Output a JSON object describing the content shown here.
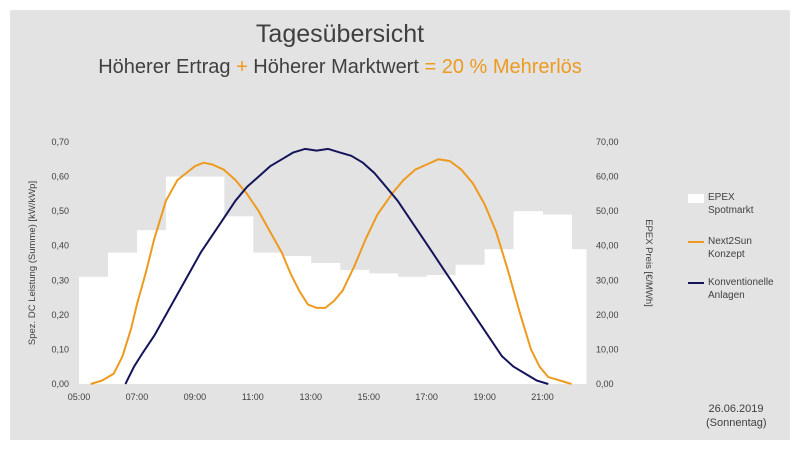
{
  "title": "Tagesübersicht",
  "subtitle": {
    "part1": "Höherer Ertrag ",
    "plus": "+",
    "part2": " Höherer Marktwert ",
    "equals": "= 20 % Mehrerlös"
  },
  "date_line1": "26.06.2019",
  "date_line2": "(Sonnentag)",
  "colors": {
    "background": "#e3e3e3",
    "epex": "#ffffff",
    "next2sun": "#ee9a1f",
    "konventionell": "#14145a",
    "accent": "#ee9a1f"
  },
  "legend": {
    "epex_line1": "EPEX",
    "epex_line2": "Spotmarkt",
    "next2sun_line1": "Next2Sun",
    "next2sun_line2": "Konzept",
    "konv_line1": "Konventionelle",
    "konv_line2": "Anlagen"
  },
  "chart_data": {
    "type": "line",
    "xlabel": "",
    "ylabel": "Spez. DC Leistung (Summe) [kW/kWp]",
    "ylabel_right": "EPEX Preis [€/MWh]",
    "xlim": [
      5,
      22.5
    ],
    "ylim": [
      0,
      0.7
    ],
    "ylim_right": [
      0,
      70
    ],
    "x_ticks": [
      "05:00",
      "07:00",
      "09:00",
      "11:00",
      "13:00",
      "15:00",
      "17:00",
      "19:00",
      "21:00"
    ],
    "y_ticks": [
      "0,00",
      "0,10",
      "0,20",
      "0,30",
      "0,40",
      "0,50",
      "0,60",
      "0,70"
    ],
    "y_ticks_right": [
      "0,00",
      "10,00",
      "20,00",
      "30,00",
      "40,00",
      "50,00",
      "60,00",
      "70,00"
    ],
    "legend_position": "right",
    "grid": false,
    "series": [
      {
        "name": "EPEX Spotmarkt",
        "kind": "step-area",
        "axis": "right",
        "x": [
          5,
          6,
          7,
          8,
          9,
          10,
          11,
          12,
          13,
          14,
          15,
          16,
          17,
          18,
          19,
          20,
          21,
          22,
          22.5
        ],
        "values": [
          31,
          38,
          44.5,
          60,
          60,
          48.5,
          38,
          37,
          35,
          33,
          32,
          31,
          31.5,
          34.5,
          39,
          50,
          49,
          39,
          36.5
        ]
      },
      {
        "name": "Next2Sun Konzept",
        "axis": "left",
        "x": [
          5.4,
          5.8,
          6.2,
          6.5,
          6.8,
          7.0,
          7.3,
          7.6,
          8.0,
          8.4,
          8.7,
          9.0,
          9.3,
          9.6,
          10.0,
          10.4,
          10.8,
          11.2,
          11.6,
          12.0,
          12.3,
          12.6,
          12.9,
          13.2,
          13.5,
          13.8,
          14.1,
          14.5,
          14.9,
          15.3,
          15.8,
          16.2,
          16.6,
          17.0,
          17.4,
          17.8,
          18.2,
          18.6,
          19.0,
          19.4,
          19.8,
          20.2,
          20.6,
          20.9,
          21.2,
          21.6,
          22.0
        ],
        "values": [
          0,
          0.01,
          0.03,
          0.08,
          0.16,
          0.23,
          0.32,
          0.42,
          0.53,
          0.59,
          0.61,
          0.63,
          0.64,
          0.635,
          0.62,
          0.59,
          0.55,
          0.5,
          0.44,
          0.38,
          0.32,
          0.27,
          0.23,
          0.22,
          0.22,
          0.24,
          0.27,
          0.34,
          0.42,
          0.49,
          0.55,
          0.59,
          0.62,
          0.635,
          0.65,
          0.645,
          0.62,
          0.58,
          0.52,
          0.44,
          0.33,
          0.21,
          0.1,
          0.05,
          0.02,
          0.01,
          0
        ]
      },
      {
        "name": "Konventionelle Anlagen",
        "axis": "left",
        "x": [
          6.6,
          6.9,
          7.2,
          7.6,
          8.0,
          8.4,
          8.8,
          9.2,
          9.6,
          10.0,
          10.4,
          10.8,
          11.2,
          11.6,
          12.0,
          12.4,
          12.8,
          13.2,
          13.6,
          14.0,
          14.4,
          14.8,
          15.2,
          15.6,
          16.0,
          16.4,
          16.8,
          17.2,
          17.6,
          18.0,
          18.4,
          18.8,
          19.2,
          19.6,
          20.0,
          20.4,
          20.8,
          21.2
        ],
        "values": [
          0,
          0.05,
          0.09,
          0.14,
          0.2,
          0.26,
          0.32,
          0.38,
          0.43,
          0.48,
          0.53,
          0.57,
          0.6,
          0.63,
          0.65,
          0.67,
          0.68,
          0.675,
          0.68,
          0.67,
          0.66,
          0.64,
          0.61,
          0.57,
          0.53,
          0.48,
          0.43,
          0.38,
          0.33,
          0.28,
          0.23,
          0.18,
          0.13,
          0.08,
          0.05,
          0.03,
          0.01,
          0
        ]
      }
    ]
  }
}
